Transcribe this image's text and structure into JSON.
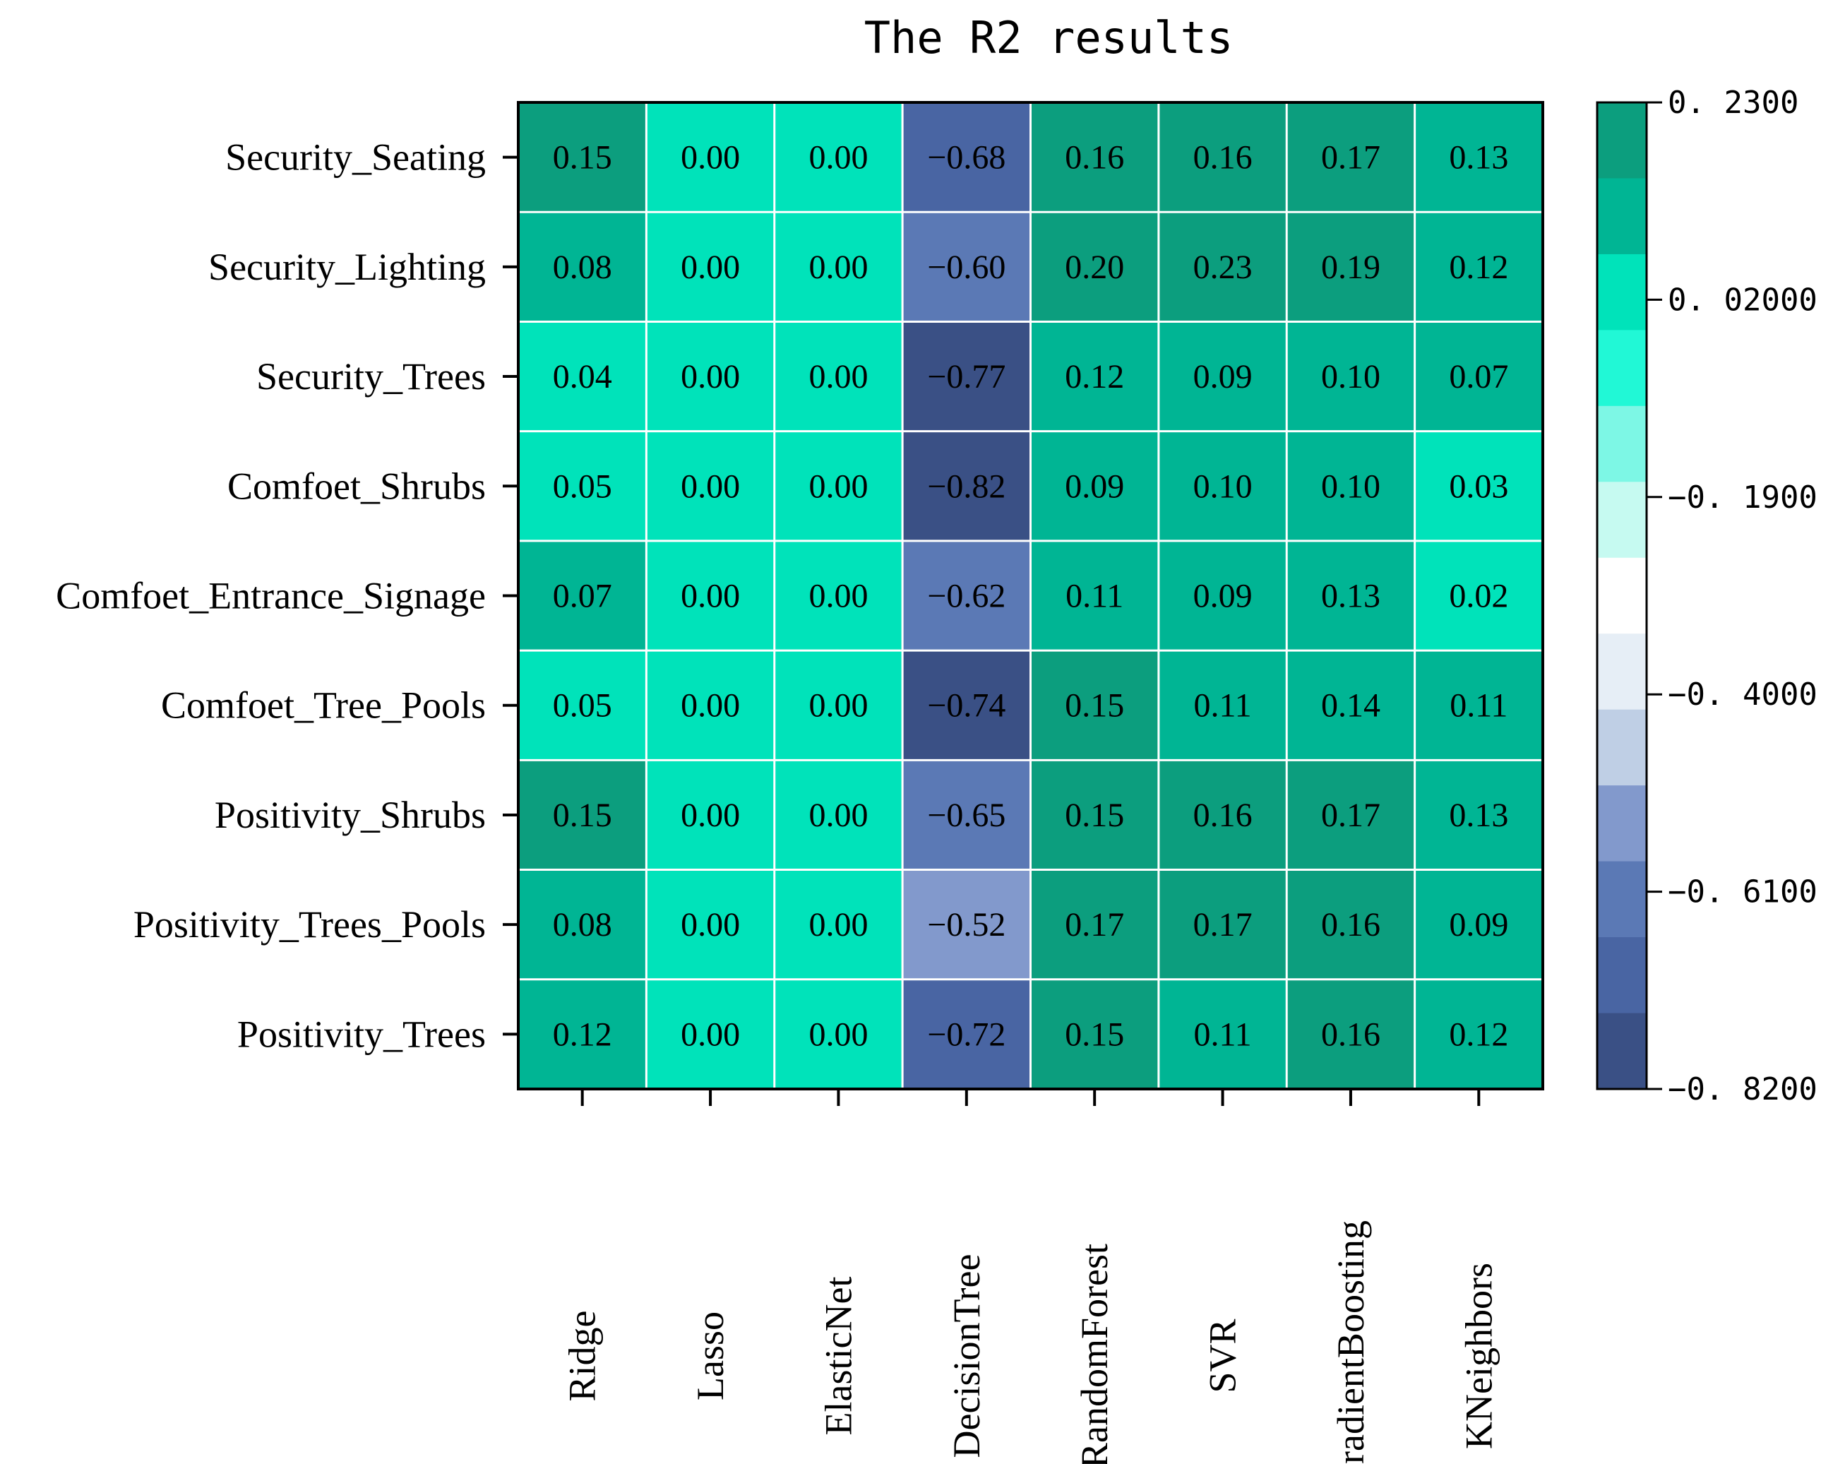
{
  "chart_data": {
    "type": "heatmap",
    "title": "The R2 results",
    "rows": [
      "Security_Seating",
      "Security_Lighting",
      "Security_Trees",
      "Comfoet_Shrubs",
      "Comfoet_Entrance_Signage",
      "Comfoet_Tree_Pools",
      "Positivity_Shrubs",
      "Positivity_Trees_Pools",
      "Positivity_Trees"
    ],
    "columns": [
      "Ridge",
      "Lasso",
      "ElasticNet",
      "DecisionTree",
      "RandomForest",
      "SVR",
      "GradientBoosting",
      "KNeighbors"
    ],
    "values": [
      [
        0.15,
        0.0,
        0.0,
        -0.68,
        0.16,
        0.16,
        0.17,
        0.13
      ],
      [
        0.08,
        0.0,
        0.0,
        -0.6,
        0.2,
        0.23,
        0.19,
        0.12
      ],
      [
        0.04,
        0.0,
        0.0,
        -0.77,
        0.12,
        0.09,
        0.1,
        0.07
      ],
      [
        0.05,
        0.0,
        0.0,
        -0.82,
        0.09,
        0.1,
        0.1,
        0.03
      ],
      [
        0.07,
        0.0,
        0.0,
        -0.62,
        0.11,
        0.09,
        0.13,
        0.02
      ],
      [
        0.05,
        0.0,
        0.0,
        -0.74,
        0.15,
        0.11,
        0.14,
        0.11
      ],
      [
        0.15,
        0.0,
        0.0,
        -0.65,
        0.15,
        0.16,
        0.17,
        0.13
      ],
      [
        0.08,
        0.0,
        0.0,
        -0.52,
        0.17,
        0.17,
        0.16,
        0.09
      ],
      [
        0.12,
        0.0,
        0.0,
        -0.72,
        0.15,
        0.11,
        0.16,
        0.12
      ]
    ],
    "value_labels": [
      [
        "0.15",
        "0.00",
        "0.00",
        "−0.68",
        "0.16",
        "0.16",
        "0.17",
        "0.13"
      ],
      [
        "0.08",
        "0.00",
        "0.00",
        "−0.60",
        "0.20",
        "0.23",
        "0.19",
        "0.12"
      ],
      [
        "0.04",
        "0.00",
        "0.00",
        "−0.77",
        "0.12",
        "0.09",
        "0.10",
        "0.07"
      ],
      [
        "0.05",
        "0.00",
        "0.00",
        "−0.82",
        "0.09",
        "0.10",
        "0.10",
        "0.03"
      ],
      [
        "0.07",
        "0.00",
        "0.00",
        "−0.62",
        "0.11",
        "0.09",
        "0.13",
        "0.02"
      ],
      [
        "0.05",
        "0.00",
        "0.00",
        "−0.74",
        "0.15",
        "0.11",
        "0.14",
        "0.11"
      ],
      [
        "0.15",
        "0.00",
        "0.00",
        "−0.65",
        "0.15",
        "0.16",
        "0.17",
        "0.13"
      ],
      [
        "0.08",
        "0.00",
        "0.00",
        "−0.52",
        "0.17",
        "0.17",
        "0.16",
        "0.09"
      ],
      [
        "0.12",
        "0.00",
        "0.00",
        "−0.72",
        "0.15",
        "0.11",
        "0.16",
        "0.12"
      ]
    ],
    "colorbar": {
      "min": -0.82,
      "max": 0.23,
      "tick_values": [
        0.23,
        0.02,
        -0.19,
        -0.4,
        -0.61,
        -0.82
      ],
      "tick_labels": [
        "0. 2300",
        "0. 02000",
        "−0. 1900",
        "−0. 4000",
        "−0. 6100",
        "−0. 8200"
      ],
      "levels_top_to_bottom": [
        "#0C9E7E",
        "#00B594",
        "#00E3BA",
        "#21F8D6",
        "#7DF7E5",
        "#C6FAF1",
        "#FFFFFF",
        "#E6EEF6",
        "#BFCFE5",
        "#8299CC",
        "#5B79B5",
        "#4965A3",
        "#3A5085"
      ]
    },
    "legend_position": "right"
  }
}
